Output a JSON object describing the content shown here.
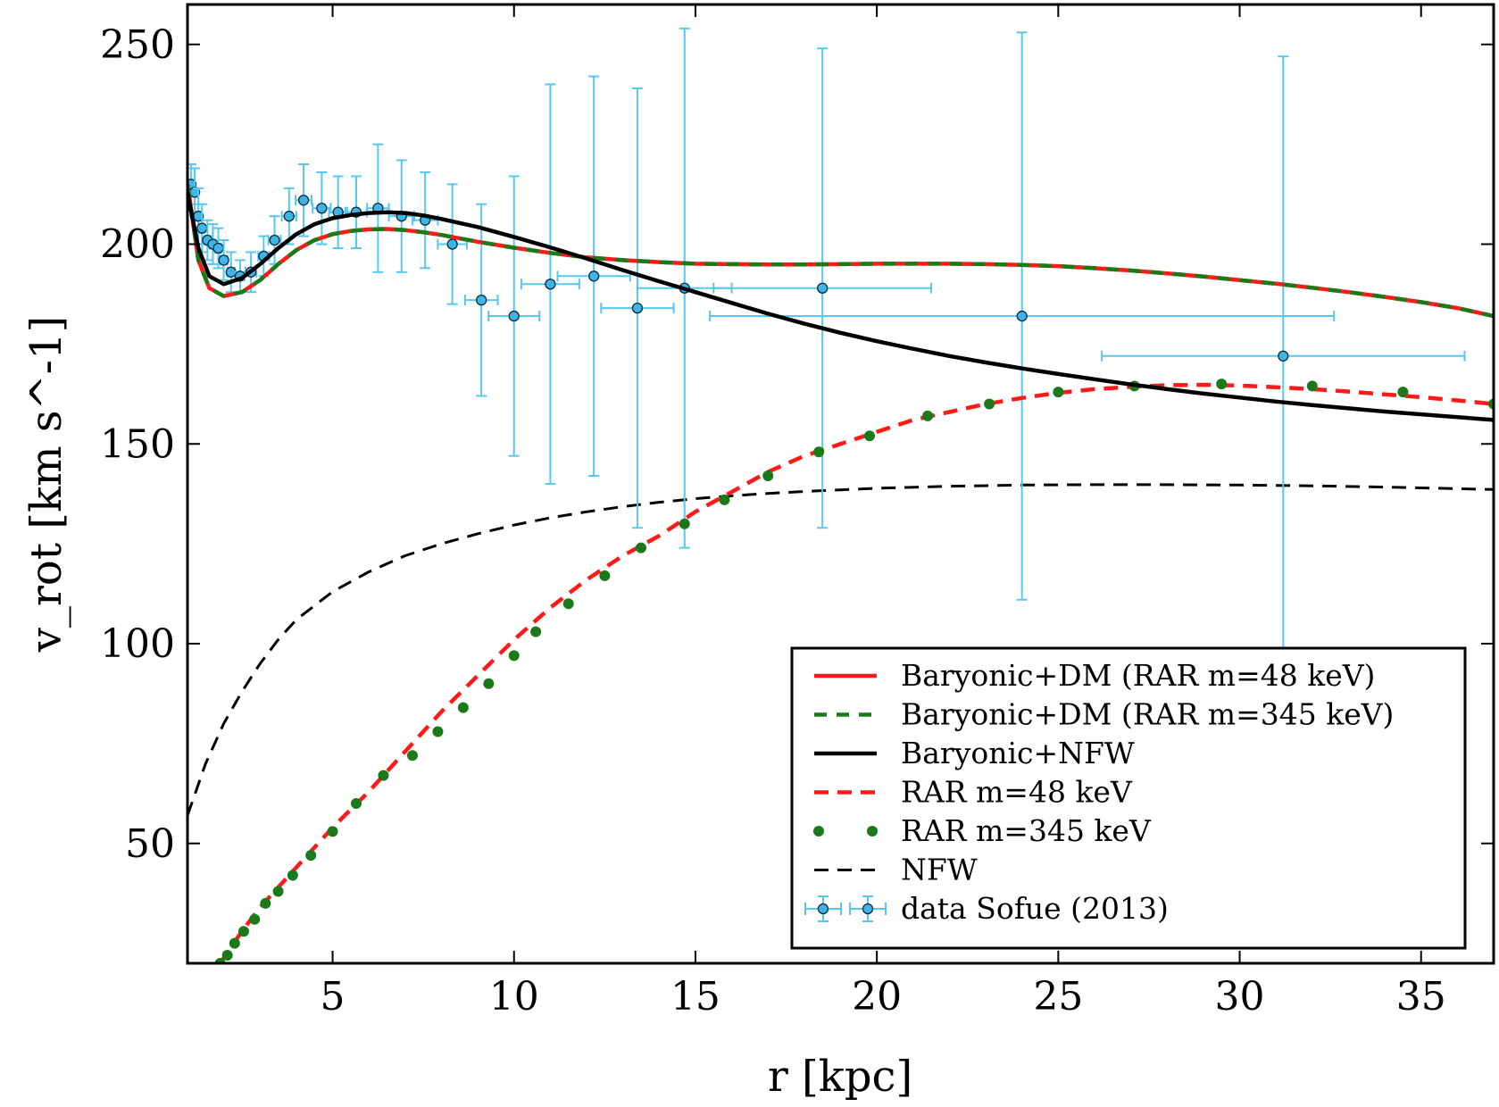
{
  "chart_data": {
    "type": "line",
    "xlabel": "r [kpc]",
    "ylabel": "v_rot [km s^-1]",
    "xlim": [
      1,
      37
    ],
    "ylim": [
      20,
      260
    ],
    "xticks": [
      5,
      10,
      15,
      20,
      25,
      30,
      35
    ],
    "yticks": [
      50,
      100,
      150,
      200,
      250
    ],
    "grid": false,
    "legend_position": "lower-right",
    "colors": {
      "red": "#ff1a1a",
      "green": "#1a7a1a",
      "black": "#000000",
      "data": "#56c8f0",
      "data_fill": "#3fb4e6"
    },
    "series": [
      {
        "name": "Baryonic+DM (RAR  m=48 keV)",
        "style": "solid-red",
        "x": [
          1.0,
          1.3,
          1.6,
          2.0,
          2.5,
          3.0,
          3.5,
          4.0,
          4.5,
          5.0,
          5.5,
          6.0,
          6.5,
          7.0,
          7.5,
          8.0,
          9.0,
          10.0,
          11.0,
          12.0,
          13.0,
          14.0,
          15.0,
          16.0,
          17.0,
          18.0,
          19.0,
          20.0,
          21.0,
          22.0,
          23.0,
          24.0,
          25.0,
          26.0,
          27.0,
          28.0,
          29.0,
          30.0,
          31.0,
          32.0,
          33.0,
          34.0,
          35.0,
          36.0,
          37.0
        ],
        "y": [
          215,
          196,
          189,
          187,
          188,
          191,
          195,
          198.5,
          201,
          202.5,
          203.3,
          203.7,
          203.8,
          203.5,
          203,
          202.3,
          200.6,
          199.1,
          197.8,
          196.7,
          196,
          195.5,
          195.1,
          195,
          194.9,
          194.9,
          195,
          195.1,
          195.1,
          195.1,
          195,
          194.8,
          194.5,
          194,
          193.4,
          192.7,
          191.9,
          191,
          190.1,
          189.1,
          188,
          186.8,
          185.5,
          184,
          182
        ]
      },
      {
        "name": "Baryonic+DM (RAR  m=345 keV)",
        "style": "dashed-green",
        "x": [
          1.0,
          1.3,
          1.6,
          2.0,
          2.5,
          3.0,
          3.5,
          4.0,
          4.5,
          5.0,
          5.5,
          6.0,
          6.5,
          7.0,
          7.5,
          8.0,
          9.0,
          10.0,
          11.0,
          12.0,
          13.0,
          14.0,
          15.0,
          16.0,
          17.0,
          18.0,
          19.0,
          20.0,
          21.0,
          22.0,
          23.0,
          24.0,
          25.0,
          26.0,
          27.0,
          28.0,
          29.0,
          30.0,
          31.0,
          32.0,
          33.0,
          34.0,
          35.0,
          36.0,
          37.0
        ],
        "y": [
          215,
          196,
          189,
          187,
          188,
          191,
          195,
          198.5,
          201,
          202.5,
          203.3,
          203.7,
          203.8,
          203.5,
          203,
          202.3,
          200.6,
          199.1,
          197.8,
          196.7,
          196,
          195.5,
          195.1,
          195,
          194.9,
          194.9,
          195,
          195.1,
          195.1,
          195.1,
          195,
          194.8,
          194.5,
          194,
          193.4,
          192.7,
          191.9,
          191,
          190.1,
          189.1,
          188,
          186.8,
          185.5,
          184,
          182
        ]
      },
      {
        "name": "Baryonic+NFW",
        "style": "solid-black",
        "x": [
          1.0,
          1.3,
          1.6,
          2.0,
          2.5,
          3.0,
          3.5,
          4.0,
          4.5,
          5.0,
          5.5,
          6.0,
          6.5,
          7.0,
          7.5,
          8.0,
          9.0,
          10.0,
          11.0,
          12.0,
          13.0,
          14.0,
          15.0,
          16.0,
          17.0,
          18.0,
          19.0,
          20.0,
          21.0,
          22.0,
          23.0,
          24.0,
          25.0,
          26.0,
          27.0,
          28.0,
          29.0,
          30.0,
          31.0,
          32.0,
          33.0,
          34.0,
          35.0,
          36.0,
          37.0
        ],
        "y": [
          213,
          199,
          192,
          190,
          191.5,
          195,
          199,
          202.5,
          205,
          206.5,
          207.3,
          207.8,
          208,
          207.8,
          207.2,
          206.3,
          204.3,
          201.8,
          199.2,
          196.4,
          193.5,
          190.7,
          188,
          185.3,
          182.6,
          180.1,
          177.8,
          175.7,
          173.8,
          172,
          170.4,
          168.9,
          167.5,
          166.2,
          164.9,
          163.7,
          162.6,
          161.6,
          160.6,
          159.7,
          158.9,
          158.1,
          157.4,
          156.7,
          156
        ]
      },
      {
        "name": "RAR m=48 keV",
        "style": "dashed-red",
        "x": [
          1.9,
          2.5,
          3.0,
          4.0,
          5.0,
          6.0,
          7.0,
          8.0,
          9.0,
          10.0,
          11.0,
          12.0,
          13.0,
          14.0,
          15.0,
          16.0,
          17.0,
          18.0,
          19.0,
          20.0,
          21.0,
          22.0,
          23.0,
          24.0,
          25.0,
          26.0,
          27.0,
          28.0,
          29.0,
          30.0,
          31.0,
          32.0,
          33.0,
          34.0,
          35.0,
          36.0,
          37.0
        ],
        "y": [
          20,
          28,
          34,
          44,
          54,
          63,
          73,
          83,
          92,
          101,
          109,
          116,
          122,
          127,
          133,
          138,
          143,
          147,
          150,
          153,
          156,
          158,
          160,
          161.5,
          162.8,
          163.7,
          164.3,
          164.7,
          164.8,
          164.6,
          164.2,
          163.7,
          163.1,
          162.4,
          161.7,
          160.9,
          160
        ]
      },
      {
        "name": "RAR m=345 keV",
        "style": "dotted-green",
        "x": [
          1.9,
          2.1,
          2.3,
          2.55,
          2.85,
          3.15,
          3.5,
          3.9,
          4.4,
          5.0,
          5.65,
          6.4,
          7.2,
          7.9,
          8.6,
          9.3,
          10.0,
          10.6,
          11.5,
          12.5,
          13.5,
          14.7,
          15.8,
          17.0,
          18.4,
          19.8,
          21.4,
          23.1,
          25.0,
          27.1,
          29.5,
          32.0,
          34.5,
          37.0
        ],
        "y": [
          20,
          22,
          25,
          28,
          31,
          35,
          38,
          42,
          47,
          53,
          60,
          67,
          72,
          78,
          84,
          90,
          97,
          103,
          110,
          117,
          124,
          130,
          136,
          142,
          148,
          152,
          157,
          160,
          163,
          164.5,
          165,
          164.5,
          163,
          160
        ]
      },
      {
        "name": "NFW",
        "style": "dashed-black",
        "x": [
          1.0,
          1.5,
          2.0,
          2.5,
          3.0,
          3.5,
          4.0,
          5.0,
          6.0,
          7.0,
          8.0,
          9.0,
          10.0,
          11.0,
          12.0,
          13.0,
          14.0,
          15.0,
          16.0,
          17.0,
          18.0,
          19.0,
          20.0,
          22.0,
          24.0,
          26.0,
          28.0,
          30.0,
          32.0,
          34.0,
          36.0,
          37.0
        ],
        "y": [
          57,
          70,
          80,
          88,
          95,
          101,
          106,
          113,
          118,
          122,
          125,
          127.5,
          129.7,
          131.5,
          133,
          134.3,
          135.4,
          136.3,
          137,
          137.6,
          138.1,
          138.5,
          138.9,
          139.4,
          139.7,
          139.8,
          139.8,
          139.7,
          139.5,
          139.2,
          138.8,
          138.6
        ]
      },
      {
        "name": "data Sofue (2013)",
        "style": "errorbar",
        "points": [
          {
            "x": 1.1,
            "y": 215,
            "yerr": 5,
            "xerr": 0.05
          },
          {
            "x": 1.2,
            "y": 213,
            "yerr": 6,
            "xerr": 0.05
          },
          {
            "x": 1.3,
            "y": 207,
            "yerr": 7,
            "xerr": 0.06
          },
          {
            "x": 1.4,
            "y": 204,
            "yerr": 6,
            "xerr": 0.06
          },
          {
            "x": 1.55,
            "y": 201,
            "yerr": 5,
            "xerr": 0.07
          },
          {
            "x": 1.7,
            "y": 200,
            "yerr": 5,
            "xerr": 0.08
          },
          {
            "x": 1.85,
            "y": 199,
            "yerr": 5,
            "xerr": 0.08
          },
          {
            "x": 2.0,
            "y": 196,
            "yerr": 5,
            "xerr": 0.1
          },
          {
            "x": 2.2,
            "y": 193,
            "yerr": 5,
            "xerr": 0.1
          },
          {
            "x": 2.45,
            "y": 192,
            "yerr": 4,
            "xerr": 0.12
          },
          {
            "x": 2.75,
            "y": 193,
            "yerr": 5,
            "xerr": 0.15
          },
          {
            "x": 3.1,
            "y": 197,
            "yerr": 5,
            "xerr": 0.15
          },
          {
            "x": 3.4,
            "y": 201,
            "yerr": 6,
            "xerr": 0.17
          },
          {
            "x": 3.8,
            "y": 207,
            "yerr": 7,
            "xerr": 0.2
          },
          {
            "x": 4.2,
            "y": 211,
            "yerr": 9,
            "xerr": 0.22
          },
          {
            "x": 4.7,
            "y": 209,
            "yerr": 9,
            "xerr": 0.25
          },
          {
            "x": 5.15,
            "y": 208,
            "yerr": 9,
            "xerr": 0.25
          },
          {
            "x": 5.65,
            "y": 208,
            "yerr": 9,
            "xerr": 0.3
          },
          {
            "x": 6.25,
            "y": 209,
            "yerr": 16,
            "xerr": 0.3
          },
          {
            "x": 6.9,
            "y": 207,
            "yerr": 14,
            "xerr": 0.35
          },
          {
            "x": 7.55,
            "y": 206,
            "yerr": 12,
            "xerr": 0.35
          },
          {
            "x": 8.3,
            "y": 200,
            "yerr": 15,
            "xerr": 0.4
          },
          {
            "x": 9.1,
            "y": 186,
            "yerr": 24,
            "xerr": 0.45
          },
          {
            "x": 10.0,
            "y": 182,
            "yerr": 35,
            "xerr": 0.7
          },
          {
            "x": 11.0,
            "y": 190,
            "yerr": 50,
            "xerr": 0.8
          },
          {
            "x": 12.2,
            "y": 192,
            "yerr": 50,
            "xerr": 1.0
          },
          {
            "x": 13.4,
            "y": 184,
            "yerr": 55,
            "xerr": 1.0
          },
          {
            "x": 14.7,
            "y": 189,
            "yerr": 65,
            "xerr": 1.3
          },
          {
            "x": 18.5,
            "y": 189,
            "yerr": 60,
            "xerr": 3.0
          },
          {
            "x": 24.0,
            "y": 182,
            "yerr": 71,
            "xerr": 8.6
          },
          {
            "x": 31.2,
            "y": 172,
            "yerr": 75,
            "xerr": 5.0
          }
        ]
      }
    ],
    "legend": [
      {
        "label": "Baryonic+DM (RAR  m=48 keV)",
        "style": "solid-red"
      },
      {
        "label": "Baryonic+DM (RAR  m=345 keV)",
        "style": "dashed-green"
      },
      {
        "label": "Baryonic+NFW",
        "style": "solid-black"
      },
      {
        "label": "RAR m=48 keV",
        "style": "dashed-red"
      },
      {
        "label": "RAR m=345 keV",
        "style": "dotted-green"
      },
      {
        "label": "NFW",
        "style": "dashed-black"
      },
      {
        "label": "data Sofue (2013)",
        "style": "errorbar"
      }
    ]
  }
}
